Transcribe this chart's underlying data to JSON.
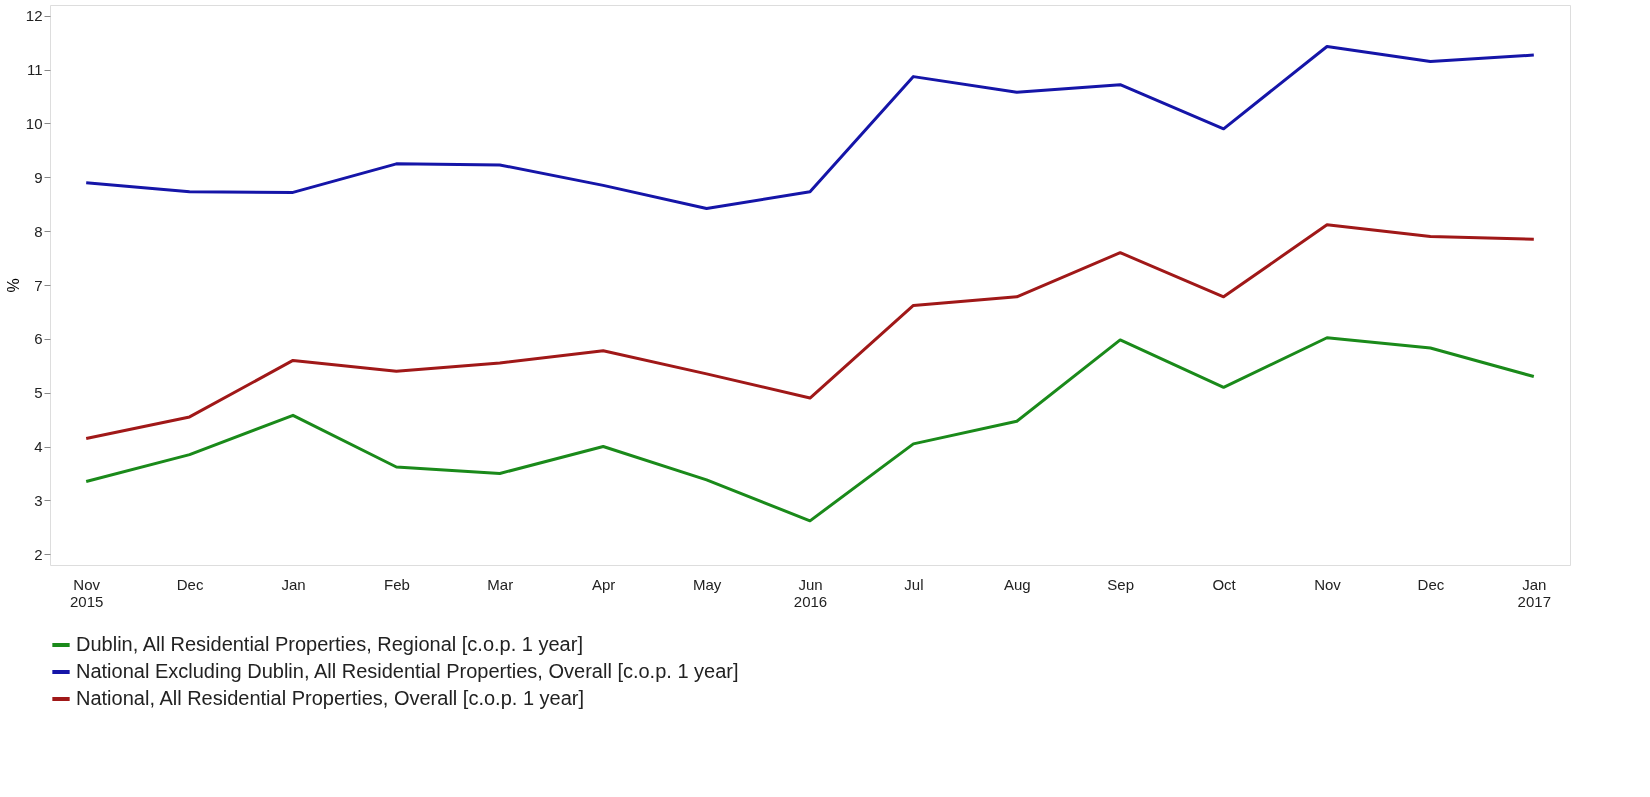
{
  "chart_data": {
    "type": "line",
    "ylabel": "%",
    "categories": [
      "Nov 2015",
      "Dec",
      "Jan",
      "Feb",
      "Mar",
      "Apr",
      "May",
      "Jun 2016",
      "Jul",
      "Aug",
      "Sep",
      "Oct",
      "Nov",
      "Dec",
      "Jan 2017"
    ],
    "series": [
      {
        "name": "Dublin, All Residential Properties, Regional [c.o.p. 1 year]",
        "color": "#1a8a1a",
        "values": [
          3.35,
          3.85,
          4.58,
          3.62,
          3.5,
          4.0,
          3.38,
          2.62,
          4.05,
          4.47,
          5.98,
          5.1,
          6.02,
          5.83,
          5.3
        ]
      },
      {
        "name": "National Excluding Dublin, All Residential Properties, Overall [c.o.p. 1 year]",
        "color": "#1515a8",
        "values": [
          8.9,
          8.73,
          8.72,
          9.25,
          9.23,
          8.85,
          8.42,
          8.73,
          10.87,
          10.58,
          10.72,
          9.9,
          11.43,
          11.15,
          11.27
        ]
      },
      {
        "name": "National, All Residential Properties, Overall [c.o.p. 1 year]",
        "color": "#a01818",
        "values": [
          4.15,
          4.55,
          5.6,
          5.4,
          5.55,
          5.78,
          5.35,
          4.9,
          6.62,
          6.78,
          7.6,
          6.78,
          8.12,
          7.9,
          7.85
        ]
      }
    ],
    "ylim": [
      1.8,
      12.2
    ],
    "yticks": [
      2,
      3,
      4,
      5,
      6,
      7,
      8,
      9,
      10,
      11,
      12
    ],
    "grid": false,
    "legend": "bottom left",
    "line_style": "solid",
    "marker": "none"
  }
}
